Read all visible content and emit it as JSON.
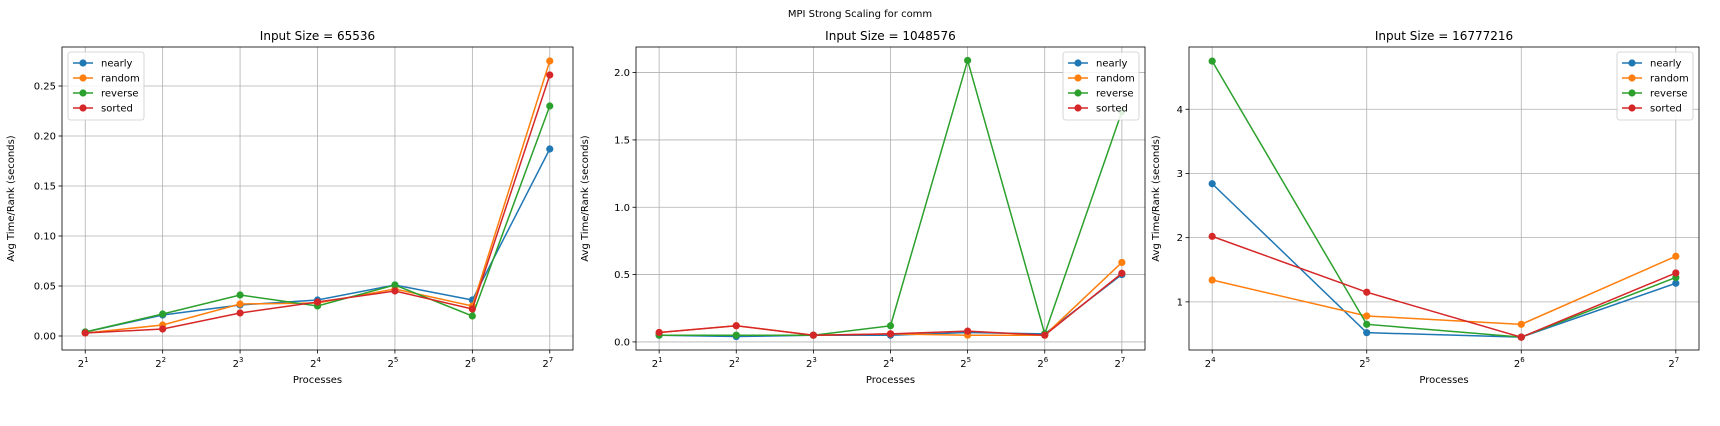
{
  "figure": {
    "suptitle": "MPI Strong Scaling for comm"
  },
  "colors": {
    "nearly": "#1f77b4",
    "random": "#ff7f0e",
    "reverse": "#2ca02c",
    "sorted": "#d62728"
  },
  "chart_data": [
    {
      "type": "line",
      "title": "Input Size = 65536",
      "xlabel": "Processes",
      "ylabel": "Avg Time/Rank (seconds)",
      "x_scale": "log2",
      "x": [
        2,
        4,
        8,
        16,
        32,
        64,
        128
      ],
      "x_tick_labels": [
        {
          "base": "2",
          "exp": "1"
        },
        {
          "base": "2",
          "exp": "2"
        },
        {
          "base": "2",
          "exp": "3"
        },
        {
          "base": "2",
          "exp": "4"
        },
        {
          "base": "2",
          "exp": "5"
        },
        {
          "base": "2",
          "exp": "6"
        },
        {
          "base": "2",
          "exp": "7"
        }
      ],
      "ylim": [
        -0.014,
        0.289
      ],
      "yticks": [
        0.0,
        0.05,
        0.1,
        0.15,
        0.2,
        0.25
      ],
      "ytick_labels": [
        "0.00",
        "0.05",
        "0.10",
        "0.15",
        "0.20",
        "0.25"
      ],
      "grid": true,
      "legend_position": "top-left",
      "series": [
        {
          "name": "nearly",
          "values": [
            0.004,
            0.021,
            0.031,
            0.036,
            0.051,
            0.036,
            0.187
          ]
        },
        {
          "name": "random",
          "values": [
            0.003,
            0.011,
            0.032,
            0.033,
            0.047,
            0.03,
            0.275
          ]
        },
        {
          "name": "reverse",
          "values": [
            0.004,
            0.022,
            0.041,
            0.03,
            0.051,
            0.02,
            0.23
          ]
        },
        {
          "name": "sorted",
          "values": [
            0.003,
            0.007,
            0.023,
            0.034,
            0.045,
            0.027,
            0.261
          ]
        }
      ]
    },
    {
      "type": "line",
      "title": "Input Size = 1048576",
      "xlabel": "Processes",
      "ylabel": "Avg Time/Rank (seconds)",
      "x_scale": "log2",
      "x": [
        2,
        4,
        8,
        16,
        32,
        64,
        128
      ],
      "x_tick_labels": [
        {
          "base": "2",
          "exp": "1"
        },
        {
          "base": "2",
          "exp": "2"
        },
        {
          "base": "2",
          "exp": "3"
        },
        {
          "base": "2",
          "exp": "4"
        },
        {
          "base": "2",
          "exp": "5"
        },
        {
          "base": "2",
          "exp": "6"
        },
        {
          "base": "2",
          "exp": "7"
        }
      ],
      "ylim": [
        -0.06,
        2.19
      ],
      "yticks": [
        0.0,
        0.5,
        1.0,
        1.5,
        2.0
      ],
      "ytick_labels": [
        "0.0",
        "0.5",
        "1.0",
        "1.5",
        "2.0"
      ],
      "grid": true,
      "legend_position": "top-right",
      "series": [
        {
          "name": "nearly",
          "values": [
            0.05,
            0.04,
            0.05,
            0.05,
            0.07,
            0.06,
            0.5
          ]
        },
        {
          "name": "random",
          "values": [
            0.07,
            0.12,
            0.05,
            0.06,
            0.05,
            0.05,
            0.59
          ]
        },
        {
          "name": "reverse",
          "values": [
            0.05,
            0.05,
            0.05,
            0.12,
            2.09,
            0.06,
            1.71
          ]
        },
        {
          "name": "sorted",
          "values": [
            0.07,
            0.12,
            0.05,
            0.06,
            0.08,
            0.05,
            0.51
          ]
        }
      ]
    },
    {
      "type": "line",
      "title": "Input Size = 16777216",
      "xlabel": "Processes",
      "ylabel": "Avg Time/Rank (seconds)",
      "x_scale": "log2",
      "x": [
        16,
        32,
        64,
        128
      ],
      "x_tick_labels": [
        {
          "base": "2",
          "exp": "4"
        },
        {
          "base": "2",
          "exp": "5"
        },
        {
          "base": "2",
          "exp": "6"
        },
        {
          "base": "2",
          "exp": "7"
        }
      ],
      "ylim": [
        0.25,
        4.97
      ],
      "yticks": [
        1,
        2,
        3,
        4
      ],
      "ytick_labels": [
        "1",
        "2",
        "3",
        "4"
      ],
      "grid": true,
      "legend_position": "top-right",
      "series": [
        {
          "name": "nearly",
          "values": [
            2.84,
            0.52,
            0.45,
            1.29
          ]
        },
        {
          "name": "random",
          "values": [
            1.34,
            0.78,
            0.65,
            1.71
          ]
        },
        {
          "name": "reverse",
          "values": [
            4.75,
            0.65,
            0.45,
            1.38
          ]
        },
        {
          "name": "sorted",
          "values": [
            2.02,
            1.15,
            0.45,
            1.45
          ]
        }
      ]
    }
  ]
}
